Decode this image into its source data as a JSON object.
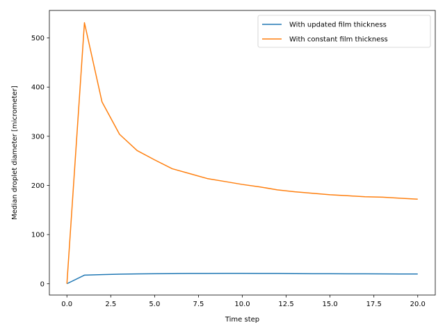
{
  "chart_data": {
    "type": "line",
    "title": "",
    "xlabel": "Time step",
    "ylabel": "Median droplet diameter  [micrometer]",
    "xlim": [
      -1,
      21
    ],
    "ylim": [
      -23,
      556
    ],
    "xticks": [
      0.0,
      2.5,
      5.0,
      7.5,
      10.0,
      12.5,
      15.0,
      17.5,
      20.0
    ],
    "xtick_labels": [
      "0.0",
      "2.5",
      "5.0",
      "7.5",
      "10.0",
      "12.5",
      "15.0",
      "17.5",
      "20.0"
    ],
    "yticks": [
      0,
      100,
      200,
      300,
      400,
      500
    ],
    "ytick_labels": [
      "0",
      "100",
      "200",
      "300",
      "400",
      "500"
    ],
    "grid": false,
    "legend_position": "top-right",
    "x": [
      0,
      1,
      2,
      3,
      4,
      5,
      6,
      7,
      8,
      9,
      10,
      11,
      12,
      13,
      14,
      15,
      16,
      17,
      18,
      19,
      20
    ],
    "series": [
      {
        "name": "With updated film thickness",
        "color": "#1f77b4",
        "values": [
          0,
          17.5,
          18.5,
          19.5,
          20,
          20.3,
          20.6,
          20.8,
          20.9,
          21,
          21,
          20.9,
          20.8,
          20.6,
          20.4,
          20.3,
          20.2,
          20.1,
          20,
          19.9,
          19.8
        ]
      },
      {
        "name": "With constant film thickness",
        "color": "#ff7f0e",
        "values": [
          0,
          531,
          370,
          304,
          271,
          252,
          234,
          224,
          214,
          208,
          202,
          197,
          191,
          187,
          184,
          181,
          179,
          177,
          176,
          174,
          172
        ]
      }
    ]
  }
}
